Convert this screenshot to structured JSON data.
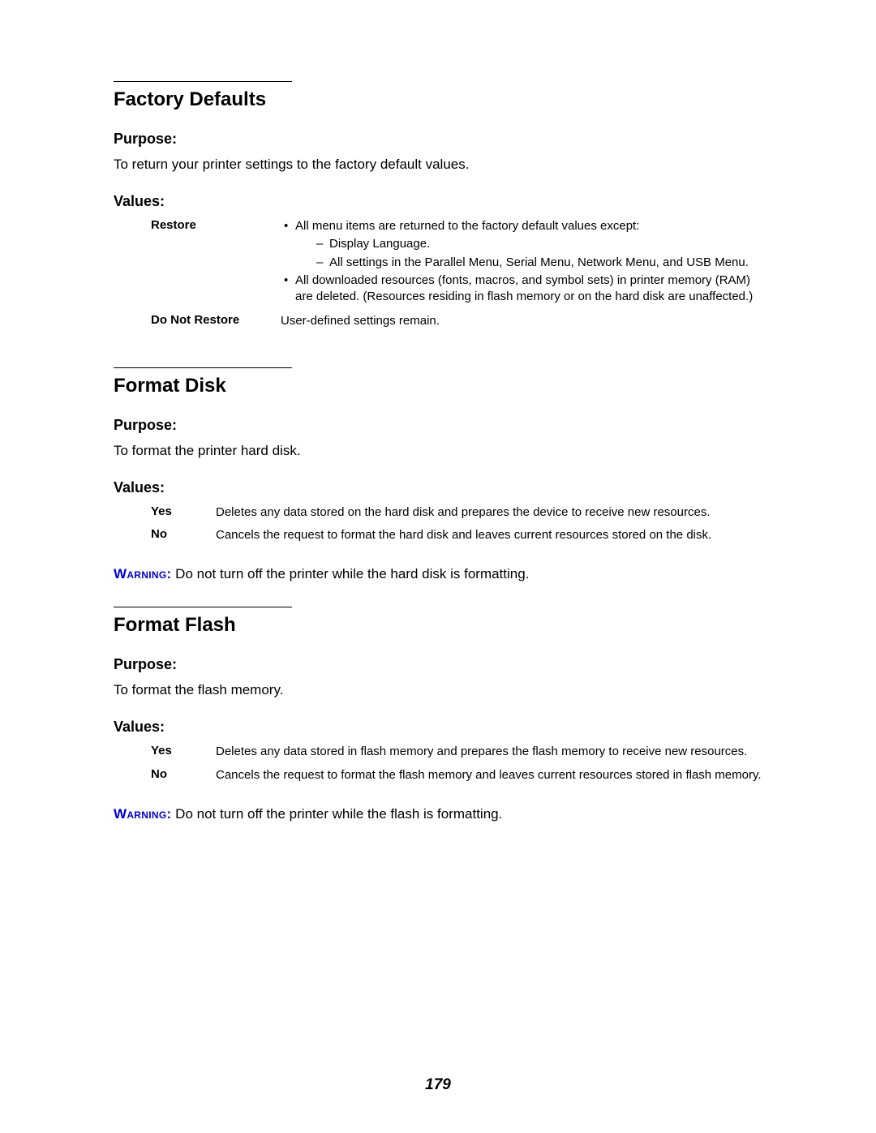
{
  "page_number": "179",
  "sections": [
    {
      "title": "Factory Defaults",
      "purpose_label": "Purpose:",
      "purpose_text": "To return your printer settings to the factory default values.",
      "values_label": "Values:",
      "rows": [
        {
          "label": "Restore",
          "bullets": [
            {
              "text": "All menu items are returned to the factory default values except:",
              "sub": [
                "Display Language.",
                "All settings in the Parallel Menu, Serial Menu, Network Menu, and USB Menu."
              ]
            },
            {
              "text": "All downloaded resources (fonts, macros, and symbol sets) in printer memory (RAM) are deleted. (Resources residing in flash memory or on the hard disk are unaffected.)"
            }
          ]
        },
        {
          "label": "Do Not Restore",
          "plain": "User-defined settings remain."
        }
      ]
    },
    {
      "title": "Format Disk",
      "purpose_label": "Purpose:",
      "purpose_text": "To format the printer hard disk.",
      "values_label": "Values:",
      "rows": [
        {
          "label": "Yes",
          "plain": "Deletes any data stored on the hard disk and prepares the device to receive new resources."
        },
        {
          "label": "No",
          "plain": "Cancels the request to format the hard disk and leaves current resources stored on the disk."
        }
      ],
      "warning_label": "Warning:",
      "warning_text": " Do not turn off the printer while the hard disk is formatting."
    },
    {
      "title": "Format Flash",
      "purpose_label": "Purpose:",
      "purpose_text": "To format the flash memory.",
      "values_label": "Values:",
      "rows": [
        {
          "label": "Yes",
          "plain": "Deletes any data stored in flash memory and prepares the flash memory to receive new resources."
        },
        {
          "label": "No",
          "plain": "Cancels the request to format the flash memory and leaves current resources stored in flash memory."
        }
      ],
      "warning_label": "Warning:",
      "warning_text": " Do not turn off the printer while the flash is formatting."
    }
  ]
}
